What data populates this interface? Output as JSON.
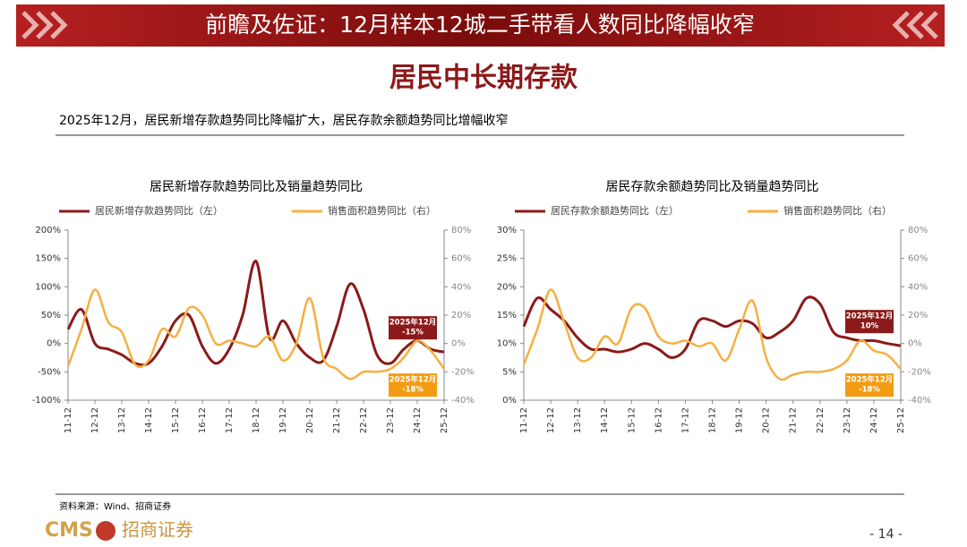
{
  "header": {
    "title": "前瞻及佐证：12月样本12城二手带看人数同比降幅收窄",
    "subtitle": "居民中长期存款",
    "note": "2025年12月，居民新增存款趋势同比降幅扩大，居民存款余额趋势同比增幅收窄"
  },
  "chart_data": [
    {
      "type": "line",
      "title": "居民新增存款趋势同比及销量趋势同比",
      "categories": [
        "11-12",
        null,
        "12-12",
        null,
        "13-12",
        null,
        "14-12",
        null,
        "15-12",
        null,
        "16-12",
        null,
        "17-12",
        null,
        "18-12",
        null,
        "19-12",
        null,
        "20-12",
        null,
        "21-12",
        null,
        "22-12",
        null,
        "23-12",
        null,
        "24-12",
        null,
        "25-12"
      ],
      "series": [
        {
          "name": "居民新增存款趋势同比（左）",
          "color": "#8b1a1a",
          "values": [
            25,
            60,
            0,
            -10,
            -20,
            -35,
            -35,
            -5,
            40,
            50,
            -5,
            -35,
            -10,
            50,
            145,
            10,
            40,
            0,
            -25,
            -30,
            30,
            105,
            60,
            -20,
            -35,
            -10,
            5,
            -10,
            -15
          ]
        },
        {
          "name": "销售面积趋势同比（右）",
          "color": "#f5b041",
          "axis": "y2",
          "values": [
            -16,
            10,
            38,
            15,
            8,
            -15,
            -12,
            10,
            5,
            25,
            20,
            0,
            2,
            0,
            -2,
            5,
            -12,
            0,
            32,
            -10,
            -18,
            -25,
            -20,
            -20,
            -18,
            -10,
            2,
            -5,
            -18
          ]
        }
      ],
      "ylim": [
        -100,
        200
      ],
      "yticks": [
        {
          "value": -100,
          "label": "-100%"
        },
        {
          "value": -50,
          "label": "-50%"
        },
        {
          "value": 0,
          "label": "0%"
        },
        {
          "value": 50,
          "label": "50%"
        },
        {
          "value": 100,
          "label": "100%"
        },
        {
          "value": 150,
          "label": "150%"
        },
        {
          "value": 200,
          "label": "200%"
        }
      ],
      "y2lim": [
        -40,
        80
      ],
      "y2ticks": [
        {
          "value": -40,
          "label": "-40%"
        },
        {
          "value": -20,
          "label": "-20%"
        },
        {
          "value": 0,
          "label": "0%"
        },
        {
          "value": 20,
          "label": "20%"
        },
        {
          "value": 40,
          "label": "40%"
        },
        {
          "value": 60,
          "label": "60%"
        },
        {
          "value": 80,
          "label": "80%"
        }
      ],
      "annotations": [
        [
          "2025年12月",
          "-15%"
        ],
        [
          "2025年12月",
          "-18%"
        ]
      ]
    },
    {
      "type": "line",
      "title": "居民存款余额趋势同比及销量趋势同比",
      "categories": [
        "11-12",
        null,
        "12-12",
        null,
        "13-12",
        null,
        "14-12",
        null,
        "15-12",
        null,
        "16-12",
        null,
        "17-12",
        null,
        "18-12",
        null,
        "19-12",
        null,
        "20-12",
        null,
        "21-12",
        null,
        "22-12",
        null,
        "23-12",
        null,
        "24-12",
        null,
        "25-12"
      ],
      "series": [
        {
          "name": "居民存款余额趋势同比（左）",
          "color": "#8b1a1a",
          "values": [
            13,
            18,
            16,
            14,
            11,
            9,
            9,
            8.5,
            9,
            10,
            9,
            7.5,
            9,
            14,
            14,
            13,
            14,
            13.5,
            11,
            12,
            14,
            18,
            17,
            12,
            11,
            10.5,
            10.5,
            10,
            9.6
          ]
        },
        {
          "name": "销售面积趋势同比（右）",
          "color": "#f5b041",
          "axis": "y2",
          "values": [
            -15,
            10,
            38,
            15,
            -10,
            -10,
            5,
            0,
            25,
            25,
            5,
            0,
            2,
            -2,
            0,
            -12,
            10,
            30,
            -10,
            -25,
            -22,
            -20,
            -20,
            -18,
            -12,
            2,
            -5,
            -8,
            -18
          ]
        }
      ],
      "ylim": [
        0,
        30
      ],
      "yticks": [
        {
          "value": 0,
          "label": "0%"
        },
        {
          "value": 5,
          "label": "5%"
        },
        {
          "value": 10,
          "label": "10%"
        },
        {
          "value": 15,
          "label": "15%"
        },
        {
          "value": 20,
          "label": "20%"
        },
        {
          "value": 25,
          "label": "25%"
        },
        {
          "value": 30,
          "label": "30%"
        }
      ],
      "y2lim": [
        -40,
        80
      ],
      "y2ticks": [
        {
          "value": -40,
          "label": "-40%"
        },
        {
          "value": -20,
          "label": "-20%"
        },
        {
          "value": 0,
          "label": "0%"
        },
        {
          "value": 20,
          "label": "20%"
        },
        {
          "value": 40,
          "label": "40%"
        },
        {
          "value": 60,
          "label": "60%"
        },
        {
          "value": 80,
          "label": "80%"
        }
      ],
      "annotations": [
        [
          "2025年12月",
          "10%"
        ],
        [
          "2025年12月",
          "-18%"
        ]
      ]
    }
  ],
  "footer": {
    "source": "资料来源：Wind、招商证券",
    "logo": "CMS",
    "brand": "招商证券",
    "page": "- 14 -"
  }
}
